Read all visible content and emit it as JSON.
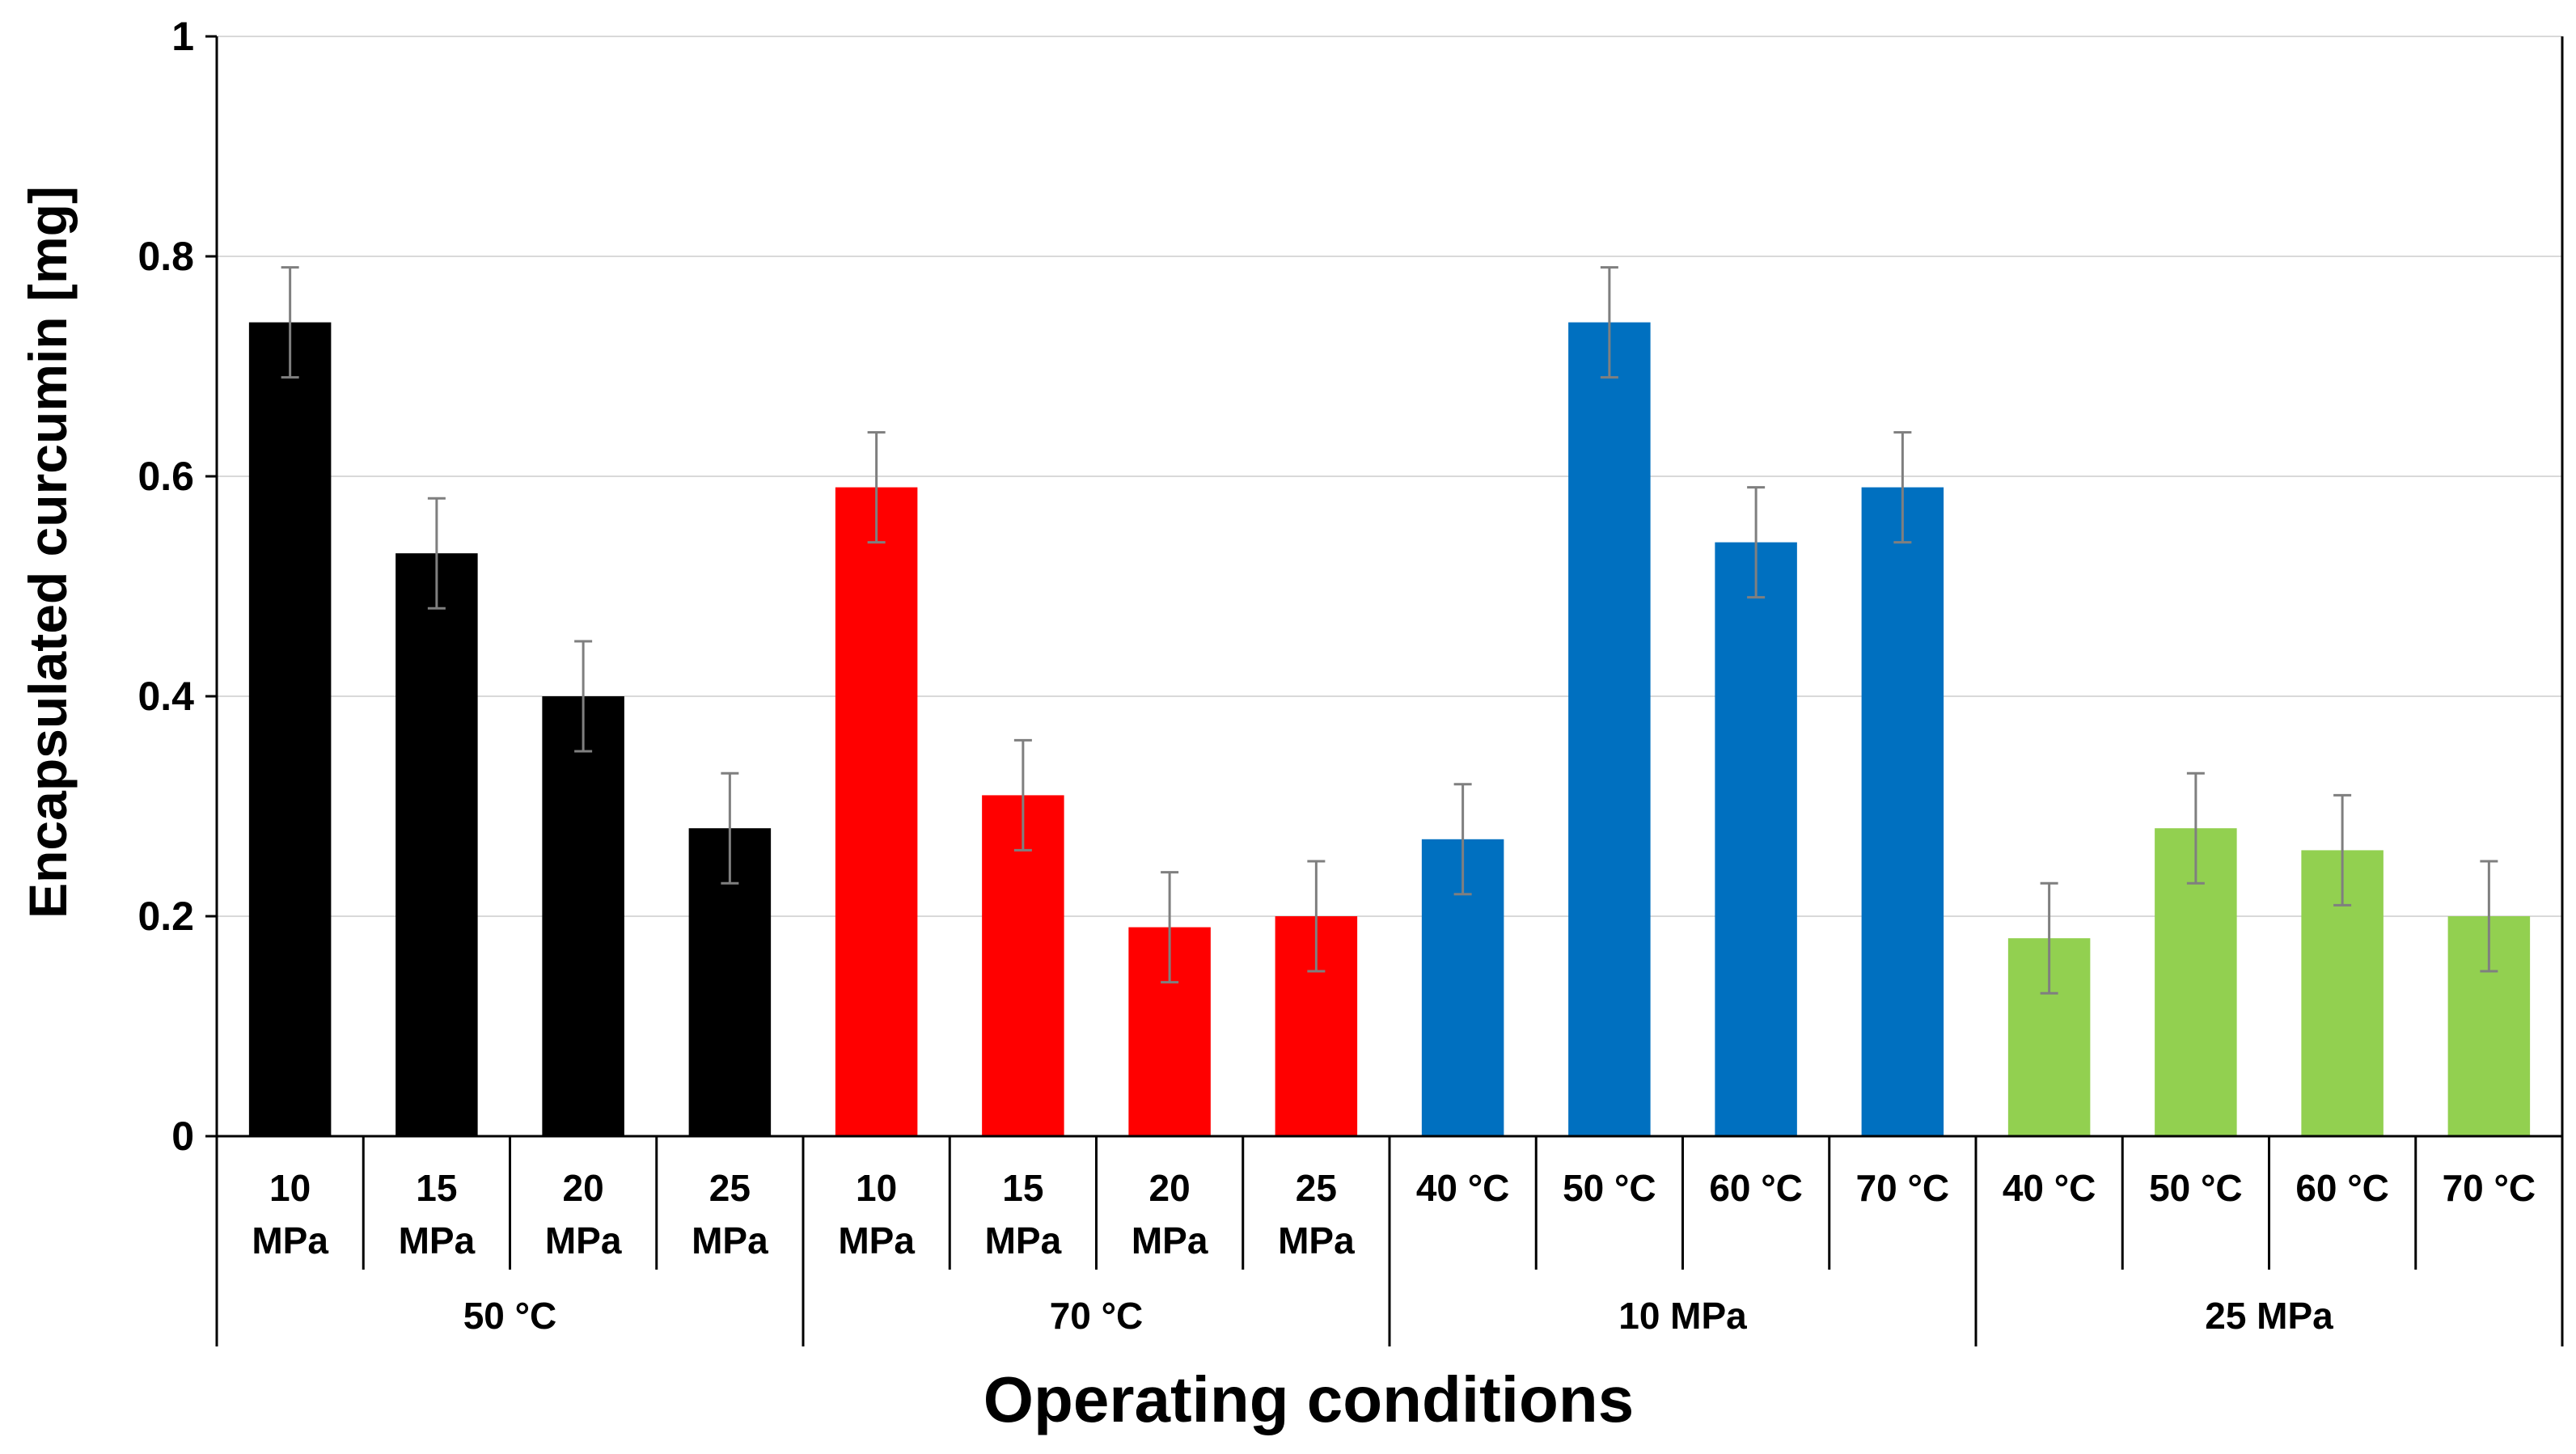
{
  "chart_data": {
    "type": "bar",
    "title": "",
    "xlabel": "Operating conditions",
    "ylabel": "Encapsulated curcumin [mg]",
    "ylim": [
      0,
      1
    ],
    "yticks": [
      0,
      0.2,
      0.4,
      0.6,
      0.8,
      1
    ],
    "ytick_labels": [
      "0",
      "0.2",
      "0.4",
      "0.6",
      "0.8",
      "1"
    ],
    "grid": true,
    "legend": "none",
    "groups": [
      {
        "label": "50 °C",
        "color": "#000000",
        "bars": [
          {
            "line1": "10",
            "line2": "MPa",
            "value": 0.74,
            "error": 0.05
          },
          {
            "line1": "15",
            "line2": "MPa",
            "value": 0.53,
            "error": 0.05
          },
          {
            "line1": "20",
            "line2": "MPa",
            "value": 0.4,
            "error": 0.05
          },
          {
            "line1": "25",
            "line2": "MPa",
            "value": 0.28,
            "error": 0.05
          }
        ]
      },
      {
        "label": "70 °C",
        "color": "#ff0000",
        "bars": [
          {
            "line1": "10",
            "line2": "MPa",
            "value": 0.59,
            "error": 0.05
          },
          {
            "line1": "15",
            "line2": "MPa",
            "value": 0.31,
            "error": 0.05
          },
          {
            "line1": "20",
            "line2": "MPa",
            "value": 0.19,
            "error": 0.05
          },
          {
            "line1": "25",
            "line2": "MPa",
            "value": 0.2,
            "error": 0.05
          }
        ]
      },
      {
        "label": "10 MPa",
        "color": "#0070c0",
        "bars": [
          {
            "line1": "40 °C",
            "line2": "",
            "value": 0.27,
            "error": 0.05
          },
          {
            "line1": "50 °C",
            "line2": "",
            "value": 0.74,
            "error": 0.05
          },
          {
            "line1": "60 °C",
            "line2": "",
            "value": 0.54,
            "error": 0.05
          },
          {
            "line1": "70 °C",
            "line2": "",
            "value": 0.59,
            "error": 0.05
          }
        ]
      },
      {
        "label": "25 MPa",
        "color": "#92d050",
        "bars": [
          {
            "line1": "40 °C",
            "line2": "",
            "value": 0.18,
            "error": 0.05
          },
          {
            "line1": "50 °C",
            "line2": "",
            "value": 0.28,
            "error": 0.05
          },
          {
            "line1": "60 °C",
            "line2": "",
            "value": 0.26,
            "error": 0.05
          },
          {
            "line1": "70 °C",
            "line2": "",
            "value": 0.2,
            "error": 0.05
          }
        ]
      }
    ]
  }
}
